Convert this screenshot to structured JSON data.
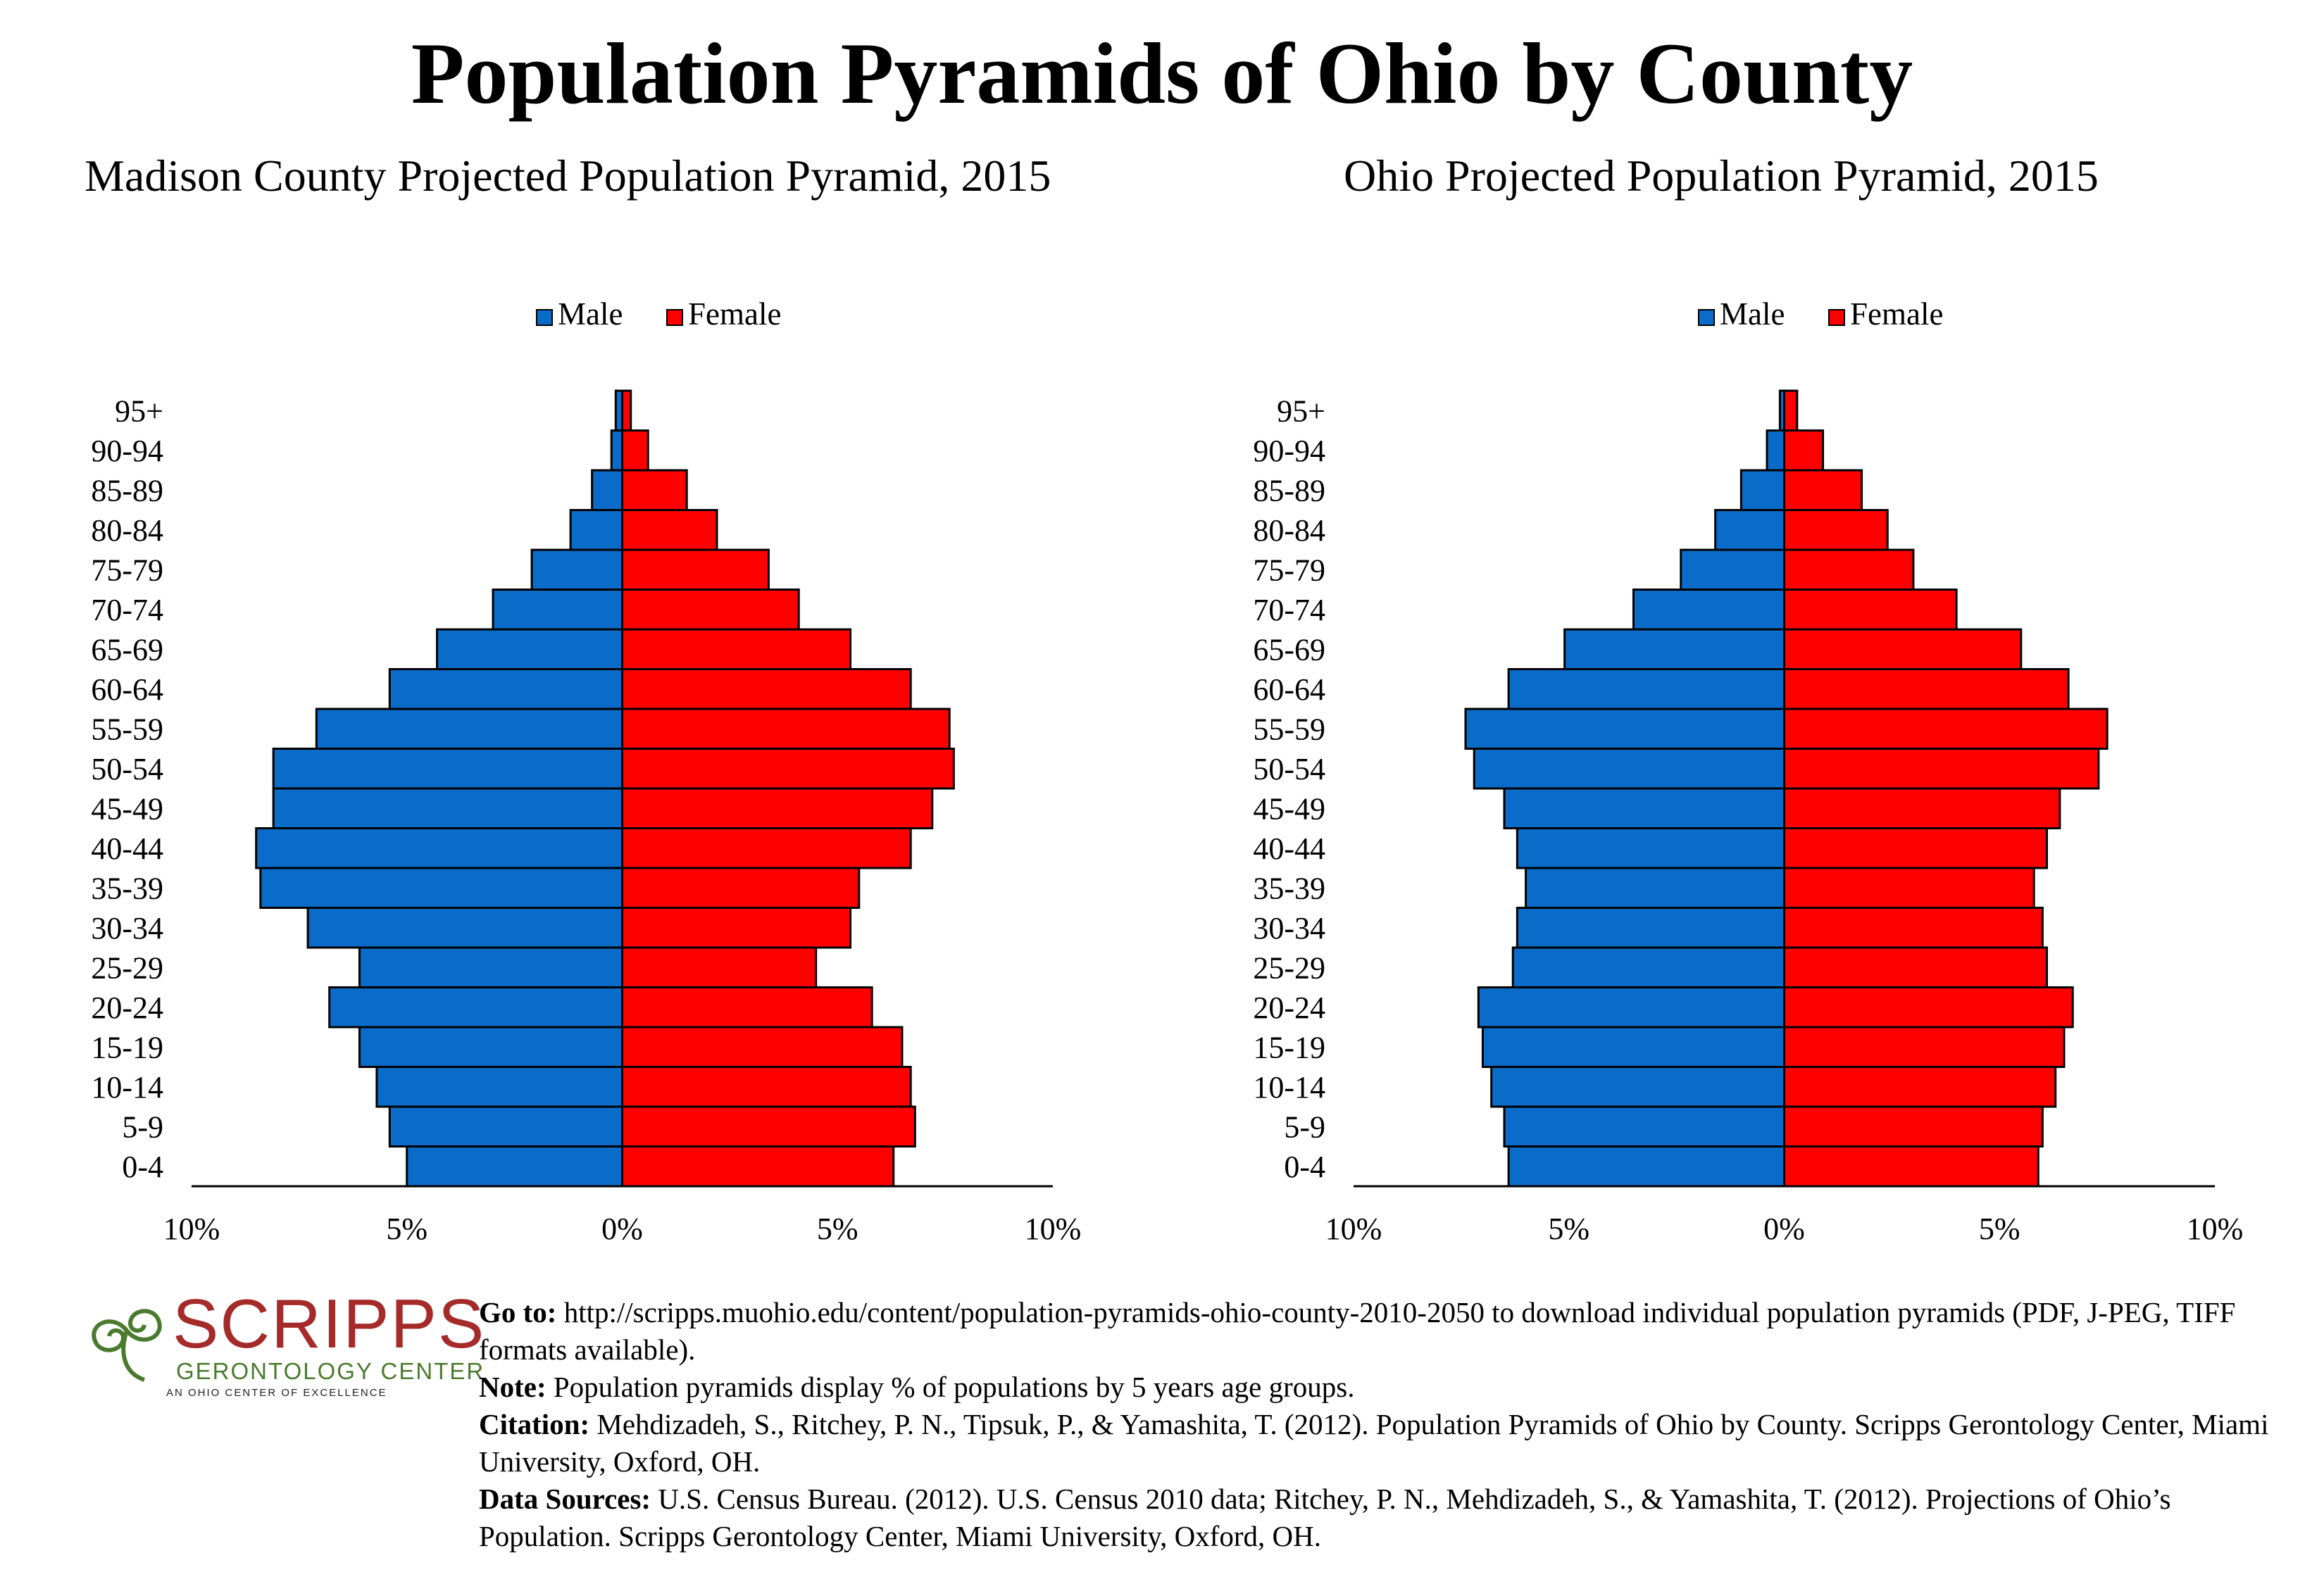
{
  "title": "Population Pyramids of Ohio by County",
  "colors": {
    "male": "#0a6cc8",
    "female": "#ff0000",
    "axis": "#000000",
    "logo_red": "#a52a2a",
    "logo_green": "#4a7a2e"
  },
  "chart_data": [
    {
      "type": "bar",
      "orientation": "horizontal-pyramid",
      "title": "Madison County Projected Population Pyramid, 2015",
      "categories": [
        "0-4",
        "5-9",
        "10-14",
        "15-19",
        "20-24",
        "25-29",
        "30-34",
        "35-39",
        "40-44",
        "45-49",
        "50-54",
        "55-59",
        "60-64",
        "65-69",
        "70-74",
        "75-79",
        "80-84",
        "85-89",
        "90-94",
        "95+"
      ],
      "series": [
        {
          "name": "Male",
          "values": [
            5.0,
            5.4,
            5.7,
            6.1,
            6.8,
            6.1,
            7.3,
            8.4,
            8.5,
            8.1,
            8.1,
            7.1,
            5.4,
            4.3,
            3.0,
            2.1,
            1.2,
            0.7,
            0.25,
            0.15
          ]
        },
        {
          "name": "Female",
          "values": [
            6.3,
            6.8,
            6.7,
            6.5,
            5.8,
            4.5,
            5.3,
            5.5,
            6.7,
            7.2,
            7.7,
            7.6,
            6.7,
            5.3,
            4.1,
            3.4,
            2.2,
            1.5,
            0.6,
            0.2
          ]
        }
      ],
      "xlim": [
        -10,
        10
      ],
      "xticks": [
        "10%",
        "5%",
        "0%",
        "5%",
        "10%"
      ],
      "legend": "top-center",
      "grid": false
    },
    {
      "type": "bar",
      "orientation": "horizontal-pyramid",
      "title": "Ohio Projected Population Pyramid, 2015",
      "categories": [
        "0-4",
        "5-9",
        "10-14",
        "15-19",
        "20-24",
        "25-29",
        "30-34",
        "35-39",
        "40-44",
        "45-49",
        "50-54",
        "55-59",
        "60-64",
        "65-69",
        "70-74",
        "75-79",
        "80-84",
        "85-89",
        "90-94",
        "95+"
      ],
      "series": [
        {
          "name": "Male",
          "values": [
            6.4,
            6.5,
            6.8,
            7.0,
            7.1,
            6.3,
            6.2,
            6.0,
            6.2,
            6.5,
            7.2,
            7.4,
            6.4,
            5.1,
            3.5,
            2.4,
            1.6,
            1.0,
            0.4,
            0.1
          ]
        },
        {
          "name": "Female",
          "values": [
            5.9,
            6.0,
            6.3,
            6.5,
            6.7,
            6.1,
            6.0,
            5.8,
            6.1,
            6.4,
            7.3,
            7.5,
            6.6,
            5.5,
            4.0,
            3.0,
            2.4,
            1.8,
            0.9,
            0.3
          ]
        }
      ],
      "xlim": [
        -10,
        10
      ],
      "xticks": [
        "10%",
        "5%",
        "0%",
        "5%",
        "10%"
      ],
      "legend": "top-center",
      "grid": false
    }
  ],
  "logo": {
    "name": "SCRIPPS",
    "subtitle": "GERONTOLOGY CENTER",
    "tagline": "AN OHIO CENTER OF EXCELLENCE"
  },
  "footer": {
    "goto_label": "Go to:",
    "goto_text": "http://scripps.muohio.edu/content/population-pyramids-ohio-county-2010-2050 to download individual population pyramids (PDF, J-PEG, TIFF formats available).",
    "note_label": "Note:",
    "note_text": "Population pyramids display % of populations by 5 years age groups.",
    "citation_label": "Citation:",
    "citation_text": "Mehdizadeh, S., Ritchey, P. N., Tipsuk, P., & Yamashita, T. (2012). Population Pyramids of Ohio by County. Scripps Gerontology Center, Miami University, Oxford, OH.",
    "sources_label": "Data Sources:",
    "sources_text": "U.S. Census Bureau. (2012). U.S. Census 2010 data; Ritchey, P. N., Mehdizadeh, S., & Yamashita, T. (2012). Projections of Ohio’s Population. Scripps Gerontology Center, Miami University, Oxford, OH."
  }
}
